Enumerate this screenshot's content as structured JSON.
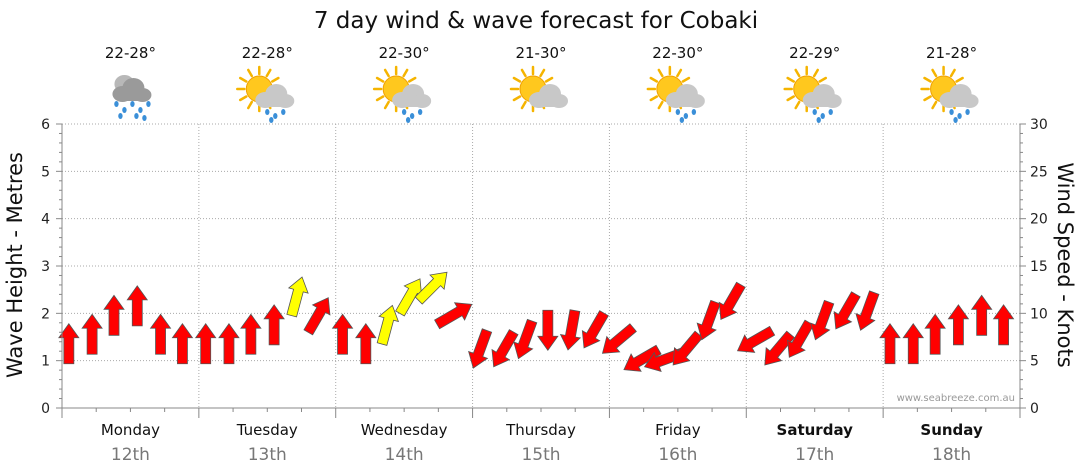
{
  "chart_data": {
    "type": "area",
    "title": "7 day wind & wave forecast for Cobaki",
    "ylabel_left": "Wave Height - Metres",
    "ylabel_right": "Wind Speed - Knots",
    "ylim_left": [
      0,
      6
    ],
    "ylim_right": [
      0,
      30
    ],
    "yticks_left": [
      "0",
      "1",
      "2",
      "3",
      "4",
      "5",
      "6"
    ],
    "yticks_right": [
      "0",
      "5",
      "10",
      "15",
      "20",
      "25",
      "30"
    ],
    "grid": true,
    "credit": "www.seabreeze.com.au",
    "days": [
      {
        "name": "Monday",
        "date": "12th",
        "temp": "22-28°",
        "icon": "rain-cloud-icon",
        "bold": false
      },
      {
        "name": "Tuesday",
        "date": "13th",
        "temp": "22-28°",
        "icon": "sun-cloud-rain-icon",
        "bold": false
      },
      {
        "name": "Wednesday",
        "date": "14th",
        "temp": "22-30°",
        "icon": "sun-cloud-rain-icon",
        "bold": false
      },
      {
        "name": "Thursday",
        "date": "15th",
        "temp": "21-30°",
        "icon": "sun-cloud-icon",
        "bold": false
      },
      {
        "name": "Friday",
        "date": "16th",
        "temp": "22-30°",
        "icon": "sun-cloud-rain-icon",
        "bold": false
      },
      {
        "name": "Saturday",
        "date": "17th",
        "temp": "22-29°",
        "icon": "sun-cloud-rain-icon",
        "bold": true
      },
      {
        "name": "Sunday",
        "date": "18th",
        "temp": "21-28°",
        "icon": "sun-cloud-rain-icon",
        "bold": true
      }
    ],
    "wind_series": {
      "name": "Wind Speed (knots)",
      "x": [
        0.05,
        0.22,
        0.38,
        0.55,
        0.72,
        0.88,
        1.05,
        1.22,
        1.38,
        1.55,
        1.72,
        1.88,
        2.05,
        2.22,
        2.38,
        2.55,
        2.72,
        2.88,
        3.05,
        3.22,
        3.38,
        3.55,
        3.72,
        3.88,
        4.05,
        4.22,
        4.38,
        4.55,
        4.72,
        4.88,
        5.05,
        5.22,
        5.38,
        5.55,
        5.72,
        5.88,
        6.05,
        6.22,
        6.38,
        6.55,
        6.72,
        6.88
      ],
      "values": [
        7,
        8,
        10,
        11,
        8,
        7,
        7,
        7,
        8,
        9,
        12,
        10,
        8,
        7,
        9,
        12,
        13,
        10,
        6,
        6,
        7,
        8,
        8,
        8,
        7,
        5,
        5,
        6,
        9,
        11,
        7,
        6,
        7,
        9,
        10,
        10,
        7,
        7,
        8,
        9,
        10,
        9
      ],
      "direction_deg": [
        0,
        0,
        0,
        0,
        0,
        0,
        0,
        0,
        0,
        0,
        15,
        30,
        0,
        0,
        15,
        30,
        45,
        60,
        200,
        210,
        200,
        180,
        190,
        210,
        230,
        240,
        250,
        220,
        200,
        210,
        240,
        220,
        210,
        200,
        210,
        200,
        0,
        0,
        0,
        0,
        0,
        0
      ],
      "highlight": [
        false,
        false,
        false,
        false,
        false,
        false,
        false,
        false,
        false,
        false,
        true,
        false,
        false,
        false,
        true,
        true,
        true,
        false,
        false,
        false,
        false,
        false,
        false,
        false,
        false,
        false,
        false,
        false,
        false,
        false,
        false,
        false,
        false,
        false,
        false,
        false,
        false,
        false,
        false,
        false,
        false,
        false
      ]
    },
    "colors": {
      "wind_fill": "#ff0000",
      "wind_highlight": "#ffff00",
      "grid": "#aaaaaa",
      "axis": "#888888"
    }
  }
}
